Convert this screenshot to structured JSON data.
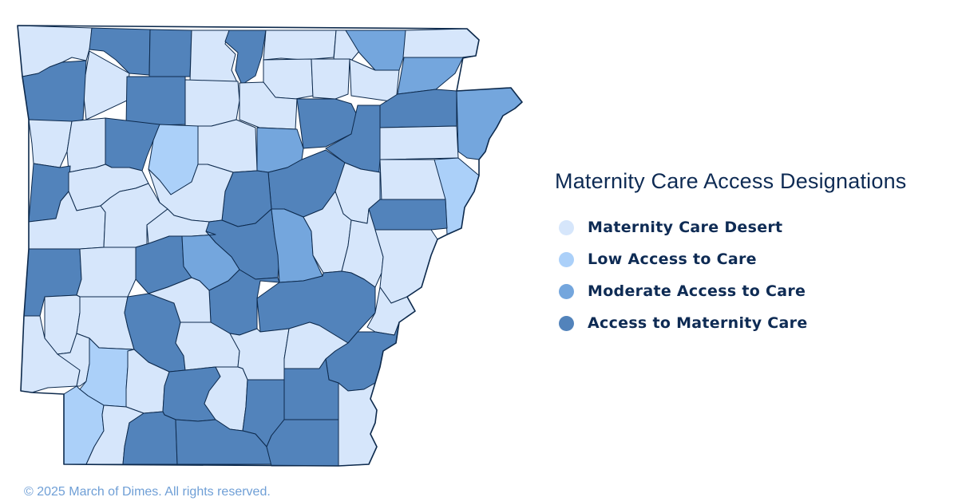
{
  "map": {
    "region": "Arkansas",
    "colors": {
      "desert": "#d6e6fb",
      "low": "#abd0f9",
      "moderate": "#74a6dd",
      "access": "#5283bb",
      "border": "#0d2a4d"
    }
  },
  "legend": {
    "title": "Maternity Care Access Designations",
    "items": [
      {
        "label": "Maternity Care Desert",
        "color": "#d6e6fb"
      },
      {
        "label": "Low Access to Care",
        "color": "#abd0f9"
      },
      {
        "label": "Moderate Access to Care",
        "color": "#74a6dd"
      },
      {
        "label": "Access to Maternity Care",
        "color": "#5283bb"
      }
    ]
  },
  "footer": {
    "copyright": "© 2025 March of Dimes. All rights reserved."
  }
}
